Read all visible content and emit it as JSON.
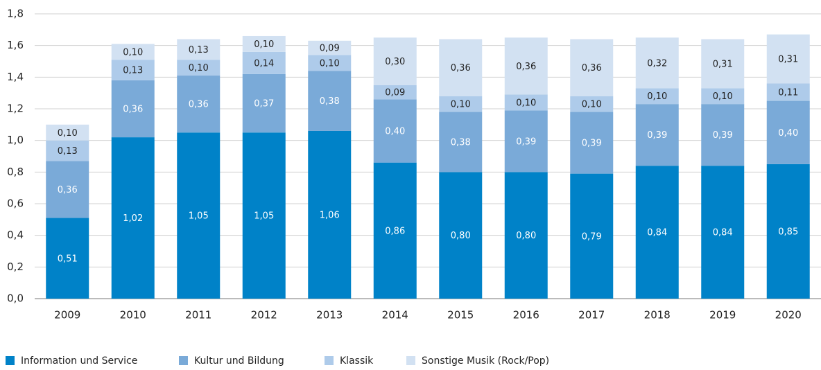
{
  "chart_data": {
    "type": "stacked_bar",
    "categories": [
      "2009",
      "2010",
      "2011",
      "2012",
      "2013",
      "2014",
      "2015",
      "2016",
      "2017",
      "2018",
      "2019",
      "2020"
    ],
    "series": [
      {
        "name": "Information und Service",
        "color": "#0082c8",
        "values": [
          0.51,
          1.02,
          1.05,
          1.05,
          1.06,
          0.86,
          0.8,
          0.8,
          0.79,
          0.84,
          0.84,
          0.85
        ],
        "value_labels": [
          "0,51",
          "1,02",
          "1,05",
          "1,05",
          "1,06",
          "0,86",
          "0,80",
          "0,80",
          "0,79",
          "0,84",
          "0,84",
          "0,85"
        ]
      },
      {
        "name": "Kultur und Bildung",
        "color": "#7aaad8",
        "values": [
          0.36,
          0.36,
          0.36,
          0.37,
          0.38,
          0.4,
          0.38,
          0.39,
          0.39,
          0.39,
          0.39,
          0.4
        ],
        "value_labels": [
          "0,36",
          "0,36",
          "0,36",
          "0,37",
          "0,38",
          "0,40",
          "0,38",
          "0,39",
          "0,39",
          "0,39",
          "0,39",
          "0,40"
        ]
      },
      {
        "name": "Klassik",
        "color": "#aecbea",
        "values": [
          0.13,
          0.13,
          0.1,
          0.14,
          0.1,
          0.09,
          0.1,
          0.1,
          0.1,
          0.1,
          0.1,
          0.11
        ],
        "value_labels": [
          "0,13",
          "0,13",
          "0,10",
          "0,14",
          "0,10",
          "0,09",
          "0,10",
          "0,10",
          "0,10",
          "0,10",
          "0,10",
          "0,11"
        ]
      },
      {
        "name": "Sonstige Musik (Rock/Pop)",
        "color": "#d2e1f2",
        "values": [
          0.1,
          0.1,
          0.13,
          0.1,
          0.09,
          0.3,
          0.36,
          0.36,
          0.36,
          0.32,
          0.31,
          0.31
        ],
        "value_labels": [
          "0,10",
          "0,10",
          "0,13",
          "0,10",
          "0,09",
          "0,30",
          "0,36",
          "0,36",
          "0,36",
          "0,32",
          "0,31",
          "0,31"
        ]
      }
    ],
    "ylim": [
      0,
      1.8
    ],
    "yticks": [
      {
        "value": 0,
        "label": "0,0"
      },
      {
        "value": 0.2,
        "label": "0,2"
      },
      {
        "value": 0.4,
        "label": "0,4"
      },
      {
        "value": 0.6,
        "label": "0,6"
      },
      {
        "value": 0.8,
        "label": "0,8"
      },
      {
        "value": 1.0,
        "label": "1,0"
      },
      {
        "value": 1.2,
        "label": "1,2"
      },
      {
        "value": 1.4,
        "label": "1,4"
      },
      {
        "value": 1.6,
        "label": "1,6"
      },
      {
        "value": 1.8,
        "label": "1,8"
      }
    ],
    "grid": true,
    "legend": "bottom"
  }
}
